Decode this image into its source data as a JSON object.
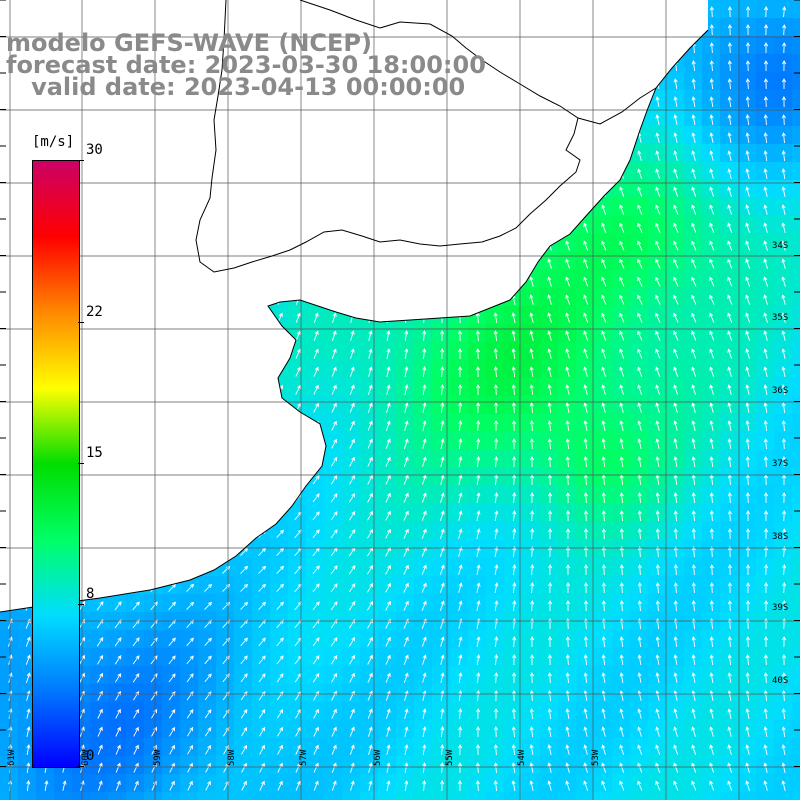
{
  "title": {
    "line1": "modelo GEFS-WAVE (NCEP)",
    "line2": "forecast date: 2023-03-30 18:00:00",
    "line3": "   valid date: 2023-04-13 00:00:00"
  },
  "colorbar": {
    "unit": "[m/s]",
    "ticks": [
      {
        "label": "30",
        "value": 30
      },
      {
        "label": "22",
        "value": 22
      },
      {
        "label": "15",
        "value": 15
      },
      {
        "label": "8",
        "value": 8
      },
      {
        "label": "0",
        "value": 0
      }
    ],
    "min": 0,
    "max": 30,
    "stops": [
      "#0000ff",
      "#0077ff",
      "#00ddff",
      "#00ff66",
      "#00dd00",
      "#ffff00",
      "#ff8800",
      "#ff0000",
      "#cc0066"
    ]
  },
  "axes": {
    "lat_labels": [
      "34S",
      "35S",
      "36S",
      "37S",
      "38S",
      "39S",
      "40S"
    ],
    "lon_labels": [
      "61W",
      "60W",
      "59W",
      "58W",
      "57W",
      "56W",
      "55W",
      "54W",
      "53W"
    ]
  },
  "colors": {
    "land": "#ffffff",
    "grid": "#555555",
    "coast": "#000000",
    "arrow": "#ffffff",
    "title": "#8a8a8a"
  }
}
